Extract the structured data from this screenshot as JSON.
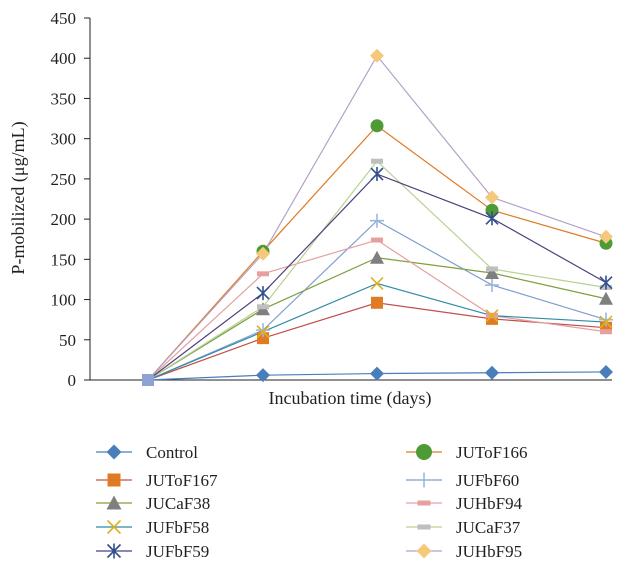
{
  "chart_data": {
    "type": "line",
    "title": "",
    "xlabel": "Incubation time (days)",
    "ylabel": "P-mobilized (μg/mL)",
    "ylim": [
      0,
      450
    ],
    "yticks": [
      "0",
      "50",
      "100",
      "150",
      "200",
      "250",
      "300",
      "350",
      "400",
      "450"
    ],
    "x": [
      0,
      1,
      2,
      3,
      4
    ],
    "grid": false,
    "legend_position": "bottom",
    "series": [
      {
        "name": "Control",
        "values": [
          0,
          6,
          8,
          9,
          10
        ],
        "color": "#4a7ebb",
        "marker": "diamond"
      },
      {
        "name": "JUToF166",
        "values": [
          0,
          160,
          316,
          211,
          170
        ],
        "color": "#e07b24",
        "marker": "circle",
        "marker_color": "#4e9a35"
      },
      {
        "name": "JUToF167",
        "values": [
          0,
          52,
          96,
          76,
          65
        ],
        "color": "#c0504d",
        "marker": "square",
        "marker_color": "#e07b24"
      },
      {
        "name": "JUFbF60",
        "values": [
          0,
          62,
          198,
          118,
          75
        ],
        "color": "#7f9fcf",
        "marker": "plus",
        "marker_color": "#9ab7de"
      },
      {
        "name": "JUCaF38",
        "values": [
          0,
          88,
          152,
          133,
          101
        ],
        "color": "#7f9f3f",
        "marker": "triangle",
        "marker_color": "#7f7f7f"
      },
      {
        "name": "JUHbF94",
        "values": [
          0,
          132,
          174,
          80,
          60
        ],
        "color": "#e6a0a0",
        "marker": "dash",
        "marker_color": "#e6a0a0"
      },
      {
        "name": "JUFbF58",
        "values": [
          0,
          60,
          120,
          80,
          72
        ],
        "color": "#2e8ba6",
        "marker": "x",
        "marker_color": "#e0b020"
      },
      {
        "name": "JUCaF37",
        "values": [
          0,
          91,
          272,
          138,
          115
        ],
        "color": "#b7d295",
        "marker": "dash",
        "marker_color": "#bfbfbf"
      },
      {
        "name": "JUFbF59",
        "values": [
          0,
          108,
          256,
          201,
          121
        ],
        "color": "#4f3f7f",
        "marker": "star",
        "marker_color": "#2f4f8f"
      },
      {
        "name": "JUHbF95",
        "values": [
          0,
          157,
          403,
          227,
          178
        ],
        "color": "#b3a2c7",
        "marker": "diamond",
        "marker_color": "#f6c97a"
      }
    ]
  }
}
